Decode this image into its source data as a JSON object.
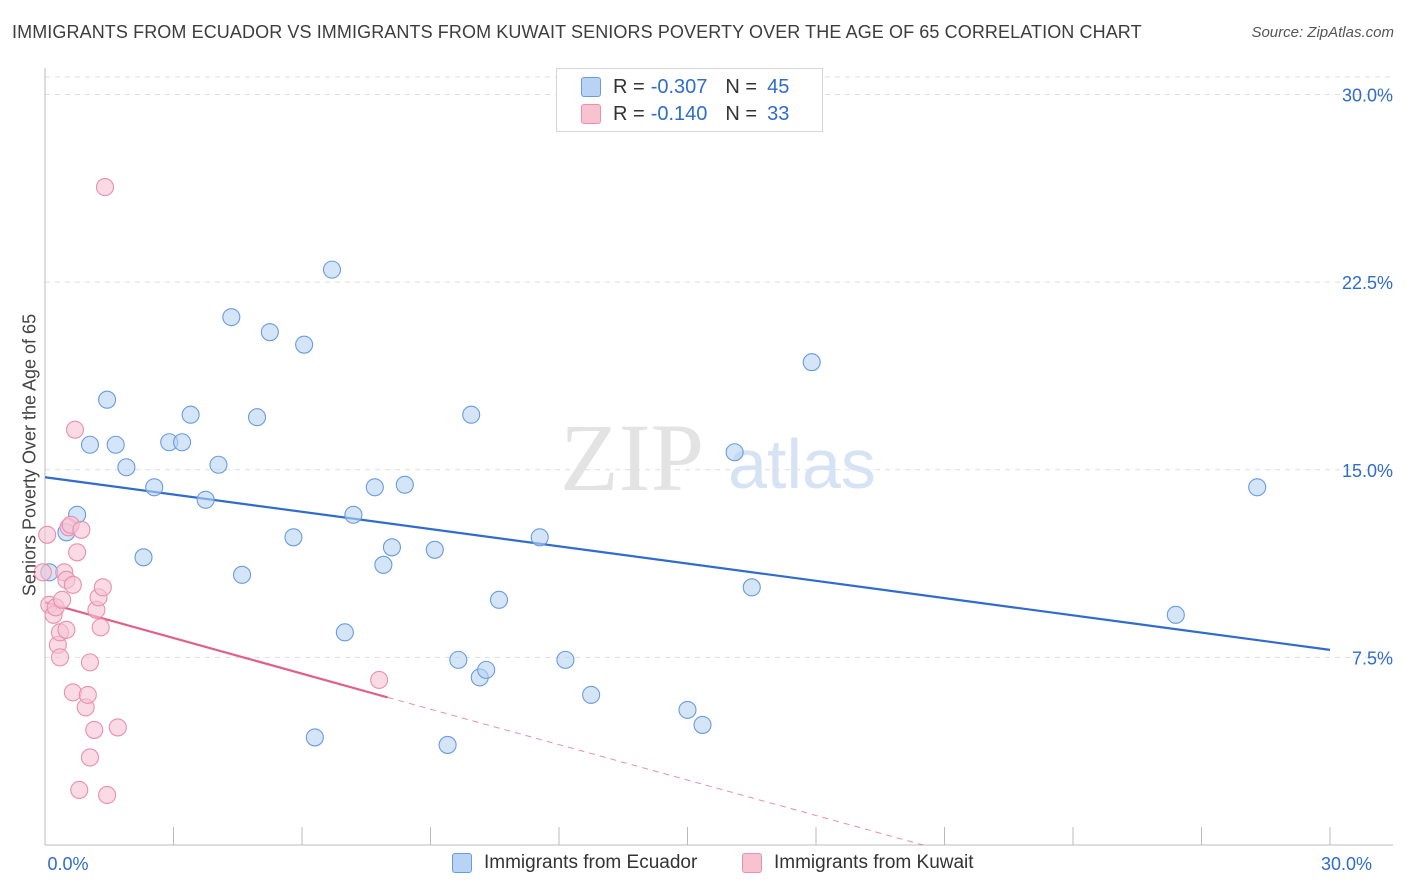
{
  "title": "IMMIGRANTS FROM ECUADOR VS IMMIGRANTS FROM KUWAIT SENIORS POVERTY OVER THE AGE OF 65 CORRELATION CHART",
  "source": "Source: ZipAtlas.com",
  "watermark": {
    "zip": "ZIP",
    "atlas": "atlas"
  },
  "legend": {
    "r_label": "R =",
    "n_label": "N =",
    "ecuador": {
      "r": "-0.307",
      "n": "45"
    },
    "kuwait": {
      "r": "-0.140",
      "n": "33"
    }
  },
  "colors": {
    "ecuador_fill": "#b8d3f3",
    "ecuador_stroke": "#6a9be0",
    "ecuador_line": "#2f6ccc",
    "kuwait_fill": "#f7c3d3",
    "kuwait_stroke": "#ea8fad",
    "kuwait_line": "#e0608a",
    "axis_text": "#2f6ccc",
    "grid": "#dedede"
  },
  "chart_data": {
    "type": "scatter",
    "title": "IMMIGRANTS FROM ECUADOR VS IMMIGRANTS FROM KUWAIT SENIORS POVERTY OVER THE AGE OF 65 CORRELATION CHART",
    "xlabel": "",
    "ylabel": "Seniors Poverty Over the Age of 65",
    "xlim": [
      0,
      30
    ],
    "ylim": [
      0,
      30.7
    ],
    "x_tick_labels": [
      "0.0%",
      "30.0%"
    ],
    "y_ticks": [
      7.5,
      15.0,
      22.5,
      30.0
    ],
    "y_tick_labels": [
      "7.5%",
      "15.0%",
      "22.5%",
      "30.0%"
    ],
    "grid": true,
    "legend_position": "top-center",
    "series": [
      {
        "name": "Immigrants from Ecuador",
        "points": [
          [
            0.1,
            10.9
          ],
          [
            0.5,
            12.5
          ],
          [
            0.75,
            13.2
          ],
          [
            1.05,
            16.0
          ],
          [
            1.45,
            17.8
          ],
          [
            1.65,
            16.0
          ],
          [
            1.9,
            15.1
          ],
          [
            2.3,
            11.5
          ],
          [
            2.55,
            14.3
          ],
          [
            2.9,
            16.1
          ],
          [
            3.2,
            16.1
          ],
          [
            3.4,
            17.2
          ],
          [
            3.75,
            13.8
          ],
          [
            4.05,
            15.2
          ],
          [
            4.35,
            21.1
          ],
          [
            4.6,
            10.8
          ],
          [
            4.95,
            17.1
          ],
          [
            5.25,
            20.5
          ],
          [
            5.8,
            12.3
          ],
          [
            6.05,
            20.0
          ],
          [
            6.3,
            4.3
          ],
          [
            6.7,
            23.0
          ],
          [
            7.0,
            8.5
          ],
          [
            7.2,
            13.2
          ],
          [
            7.7,
            14.3
          ],
          [
            7.9,
            11.2
          ],
          [
            8.1,
            11.9
          ],
          [
            8.4,
            14.4
          ],
          [
            9.1,
            11.8
          ],
          [
            9.4,
            4.0
          ],
          [
            9.65,
            7.4
          ],
          [
            9.95,
            17.2
          ],
          [
            10.15,
            6.7
          ],
          [
            10.3,
            7.0
          ],
          [
            10.6,
            9.8
          ],
          [
            11.55,
            12.3
          ],
          [
            12.15,
            7.4
          ],
          [
            12.75,
            6.0
          ],
          [
            15.0,
            5.4
          ],
          [
            15.35,
            4.8
          ],
          [
            16.1,
            15.7
          ],
          [
            16.5,
            10.3
          ],
          [
            17.9,
            19.3
          ],
          [
            26.4,
            9.2
          ],
          [
            28.3,
            14.3
          ]
        ],
        "trend": {
          "x": [
            0,
            30
          ],
          "y": [
            14.7,
            7.8
          ]
        }
      },
      {
        "name": "Immigrants from Kuwait",
        "points": [
          [
            0.05,
            12.4
          ],
          [
            0.1,
            9.6
          ],
          [
            0.2,
            9.2
          ],
          [
            0.25,
            9.5
          ],
          [
            0.3,
            8.0
          ],
          [
            0.35,
            7.5
          ],
          [
            0.35,
            8.5
          ],
          [
            0.4,
            9.8
          ],
          [
            0.45,
            10.9
          ],
          [
            0.5,
            8.6
          ],
          [
            0.5,
            10.6
          ],
          [
            0.55,
            12.7
          ],
          [
            0.6,
            12.8
          ],
          [
            0.65,
            6.1
          ],
          [
            0.65,
            10.4
          ],
          [
            0.7,
            16.6
          ],
          [
            0.75,
            11.7
          ],
          [
            0.8,
            2.2
          ],
          [
            0.85,
            12.6
          ],
          [
            0.95,
            5.5
          ],
          [
            1.0,
            6.0
          ],
          [
            1.05,
            3.5
          ],
          [
            1.05,
            7.3
          ],
          [
            1.15,
            4.6
          ],
          [
            1.2,
            9.4
          ],
          [
            1.25,
            9.9
          ],
          [
            1.3,
            8.7
          ],
          [
            1.35,
            10.3
          ],
          [
            1.45,
            2.0
          ],
          [
            1.4,
            26.3
          ],
          [
            1.7,
            4.7
          ],
          [
            7.8,
            6.6
          ],
          [
            -0.05,
            10.9
          ]
        ],
        "trend": {
          "x": [
            0,
            8.0
          ],
          "y": [
            9.7,
            5.9
          ]
        },
        "trend_dashed": {
          "x": [
            8.0,
            20.5
          ],
          "y": [
            5.9,
            0.0
          ]
        }
      }
    ]
  },
  "bottom_legend": {
    "ecuador": "Immigrants from Ecuador",
    "kuwait": "Immigrants from Kuwait"
  }
}
